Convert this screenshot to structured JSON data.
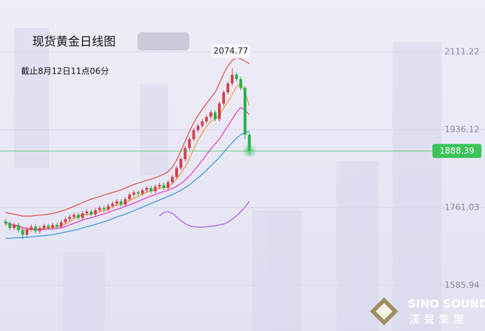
{
  "chart_data": {
    "type": "candlestick",
    "title": "现货黄金日线图",
    "subtitle": "截止8月12日11点06分",
    "max_label": 2074.77,
    "current_price": 1888.39,
    "watermark": {
      "brand": "SINO SOUND",
      "brand_cn": "漢聲集團"
    },
    "ylim": [
      1483.4,
      2227.95
    ],
    "yticks": [
      2111.22,
      1936.12,
      1761.03,
      1585.94
    ],
    "grid": true,
    "up_color": "#d2424f",
    "down_color": "#25b048",
    "price_color": "#3cc45a",
    "open": [
      1730,
      1725,
      1715,
      1722,
      1710,
      1700,
      1712,
      1718,
      1708,
      1715,
      1720,
      1716,
      1722,
      1718,
      1728,
      1735,
      1740,
      1745,
      1738,
      1748,
      1752,
      1746,
      1755,
      1760,
      1757,
      1765,
      1770,
      1775,
      1768,
      1780,
      1790,
      1795,
      1792,
      1800,
      1805,
      1798,
      1808,
      1812,
      1805,
      1818,
      1830,
      1850,
      1870,
      1895,
      1915,
      1935,
      1945,
      1955,
      1965,
      1975,
      1960,
      1995,
      2020,
      2040,
      2060,
      2050,
      2030,
      1925
    ],
    "close": [
      1725,
      1715,
      1722,
      1710,
      1700,
      1712,
      1718,
      1708,
      1715,
      1720,
      1716,
      1722,
      1718,
      1728,
      1735,
      1740,
      1745,
      1738,
      1748,
      1752,
      1746,
      1755,
      1760,
      1757,
      1765,
      1770,
      1775,
      1768,
      1780,
      1790,
      1795,
      1792,
      1800,
      1805,
      1798,
      1808,
      1812,
      1805,
      1818,
      1830,
      1850,
      1870,
      1895,
      1915,
      1935,
      1945,
      1955,
      1965,
      1975,
      1960,
      1995,
      2020,
      2040,
      2060,
      2050,
      2030,
      1925,
      1888.39
    ],
    "high": [
      1735,
      1730,
      1727,
      1727,
      1715,
      1717,
      1723,
      1723,
      1720,
      1725,
      1725,
      1727,
      1727,
      1733,
      1740,
      1745,
      1750,
      1750,
      1753,
      1757,
      1757,
      1760,
      1765,
      1765,
      1770,
      1775,
      1780,
      1780,
      1785,
      1795,
      1800,
      1800,
      1805,
      1810,
      1810,
      1813,
      1817,
      1817,
      1823,
      1835,
      1855,
      1875,
      1900,
      1920,
      1940,
      1950,
      1960,
      1970,
      1980,
      1980,
      2000,
      2025,
      2045,
      2074.77,
      2065,
      2055,
      2035,
      1930
    ],
    "low": [
      1720,
      1710,
      1710,
      1705,
      1690,
      1695,
      1707,
      1703,
      1703,
      1710,
      1711,
      1711,
      1713,
      1713,
      1723,
      1730,
      1735,
      1733,
      1733,
      1743,
      1741,
      1741,
      1750,
      1752,
      1752,
      1760,
      1765,
      1763,
      1763,
      1775,
      1785,
      1787,
      1787,
      1795,
      1793,
      1793,
      1803,
      1800,
      1800,
      1813,
      1825,
      1845,
      1865,
      1890,
      1910,
      1930,
      1940,
      1950,
      1960,
      1955,
      1955,
      1990,
      2015,
      2035,
      2045,
      2025,
      1915,
      1880
    ],
    "lines": [
      {
        "color": "#e0483c",
        "values": [
          1750,
          1748,
          1746,
          1744,
          1742,
          1742,
          1742,
          1743,
          1744,
          1745,
          1746,
          1748,
          1750,
          1753,
          1756,
          1760,
          1764,
          1768,
          1772,
          1776,
          1780,
          1783,
          1786,
          1789,
          1792,
          1795,
          1798,
          1801,
          1805,
          1809,
          1813,
          1816,
          1819,
          1822,
          1825,
          1828,
          1832,
          1836,
          1842,
          1852,
          1868,
          1888,
          1910,
          1932,
          1952,
          1968,
          1982,
          1995,
          2008,
          2020,
          2040,
          2062,
          2080,
          2092,
          2098,
          2096,
          2090,
          2085
        ]
      },
      {
        "color": "#f0962a",
        "values": [
          1725,
          1720,
          1720,
          1718,
          1712,
          1710,
          1712,
          1710,
          1711,
          1715,
          1715,
          1716,
          1718,
          1721,
          1724,
          1729,
          1737,
          1741,
          1745,
          1745,
          1746,
          1748,
          1752,
          1754,
          1757,
          1763,
          1767,
          1768,
          1772,
          1777,
          1782,
          1786,
          1791,
          1796,
          1798,
          1801,
          1805,
          1806,
          1808,
          1815,
          1825,
          1838,
          1853,
          1872,
          1893,
          1912,
          1929,
          1943,
          1955,
          1960,
          1970,
          1985,
          1999,
          2015,
          2033,
          2040,
          2021,
          1990
        ]
      },
      {
        "color": "#e62fc8",
        "values": [
          1728,
          1725,
          1722,
          1720,
          1716,
          1714,
          1713,
          1712,
          1712,
          1712,
          1713,
          1713,
          1714,
          1716,
          1718,
          1722,
          1726,
          1729,
          1733,
          1736,
          1738,
          1741,
          1744,
          1747,
          1750,
          1754,
          1757,
          1760,
          1764,
          1767,
          1771,
          1775,
          1779,
          1783,
          1787,
          1790,
          1794,
          1797,
          1800,
          1804,
          1809,
          1815,
          1823,
          1832,
          1843,
          1855,
          1867,
          1880,
          1893,
          1904,
          1915,
          1930,
          1945,
          1960,
          1975,
          1986,
          1980,
          1970
        ]
      },
      {
        "color": "#2f8fe0",
        "values": [
          1692,
          1692,
          1693,
          1693,
          1694,
          1694,
          1695,
          1696,
          1697,
          1698,
          1699,
          1700,
          1702,
          1704,
          1706,
          1708,
          1710,
          1712,
          1715,
          1718,
          1720,
          1723,
          1726,
          1729,
          1732,
          1736,
          1740,
          1743,
          1746,
          1750,
          1754,
          1758,
          1762,
          1766,
          1770,
          1774,
          1778,
          1782,
          1786,
          1790,
          1795,
          1800,
          1806,
          1812,
          1820,
          1828,
          1836,
          1845,
          1855,
          1864,
          1874,
          1885,
          1896,
          1907,
          1917,
          1925,
          1930,
          1933
        ]
      },
      {
        "color": "#a650e8",
        "values": [
          null,
          null,
          null,
          null,
          null,
          null,
          null,
          null,
          null,
          null,
          null,
          null,
          null,
          null,
          null,
          null,
          null,
          null,
          null,
          null,
          null,
          null,
          null,
          null,
          null,
          null,
          null,
          null,
          null,
          null,
          null,
          null,
          null,
          null,
          null,
          null,
          1742,
          1750,
          1752,
          1748,
          1740,
          1732,
          1725,
          1720,
          1718,
          1717,
          1717,
          1718,
          1719,
          1720,
          1722,
          1724,
          1728,
          1735,
          1742,
          1752,
          1762,
          1775
        ]
      }
    ]
  }
}
